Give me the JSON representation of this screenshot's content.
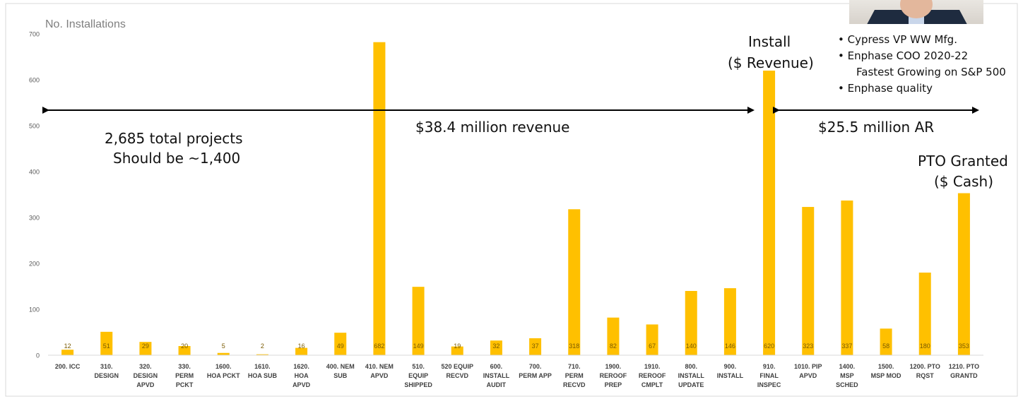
{
  "chart_data": {
    "type": "bar",
    "ylabel": "No. Installations",
    "ylim": [
      0,
      700
    ],
    "yticks": [
      0,
      100,
      200,
      300,
      400,
      500,
      600,
      700
    ],
    "bar_color": "#ffc000",
    "grid": false,
    "categories": [
      [
        "200. ICC"
      ],
      [
        "310.",
        "DESIGN"
      ],
      [
        "320.",
        "DESIGN",
        "APVD"
      ],
      [
        "330.",
        "PERM",
        "PCKT"
      ],
      [
        "1600.",
        "HOA PCKT"
      ],
      [
        "1610.",
        "HOA SUB"
      ],
      [
        "1620.",
        "HOA",
        "APVD"
      ],
      [
        "400. NEM",
        "SUB"
      ],
      [
        "410. NEM",
        "APVD"
      ],
      [
        "510.",
        "EQUIP",
        "SHIPPED"
      ],
      [
        "520 EQUIP",
        "RECVD"
      ],
      [
        "600.",
        "INSTALL",
        "AUDIT"
      ],
      [
        "700.",
        "PERM APP"
      ],
      [
        "710.",
        "PERM",
        "RECVD"
      ],
      [
        "1900.",
        "REROOF",
        "PREP"
      ],
      [
        "1910.",
        "REROOF",
        "CMPLT"
      ],
      [
        "800.",
        "INSTALL",
        "UPDATE"
      ],
      [
        "900.",
        "INSTALL"
      ],
      [
        "910.",
        "FINAL",
        "INSPEC"
      ],
      [
        "1010. PIP",
        "APVD"
      ],
      [
        "1400.",
        "MSP",
        "SCHED"
      ],
      [
        "1500.",
        "MSP MOD"
      ],
      [
        "1200. PTO",
        "RQST"
      ],
      [
        "1210. PTO",
        "GRANTD"
      ]
    ],
    "values": [
      12,
      51,
      29,
      20,
      5,
      2,
      16,
      49,
      682,
      149,
      19,
      32,
      37,
      318,
      82,
      67,
      140,
      146,
      620,
      323,
      337,
      58,
      180,
      353
    ],
    "annotations": {
      "total_projects": "2,685 total projects",
      "should_be": "Should be ~1,400",
      "revenue_span": "$38.4 million revenue",
      "ar_span": "$25.5 million AR",
      "install_label_1": "Install",
      "install_label_2": "($ Revenue)",
      "pto_label_1": "PTO Granted",
      "pto_label_2": "($ Cash)"
    }
  },
  "bio": {
    "items": [
      {
        "text": "• Cypress VP WW Mfg."
      },
      {
        "text": "• Enphase COO 2020-22",
        "sub": "Fastest Growing on S&P 500"
      },
      {
        "text": "• Enphase quality"
      }
    ]
  }
}
